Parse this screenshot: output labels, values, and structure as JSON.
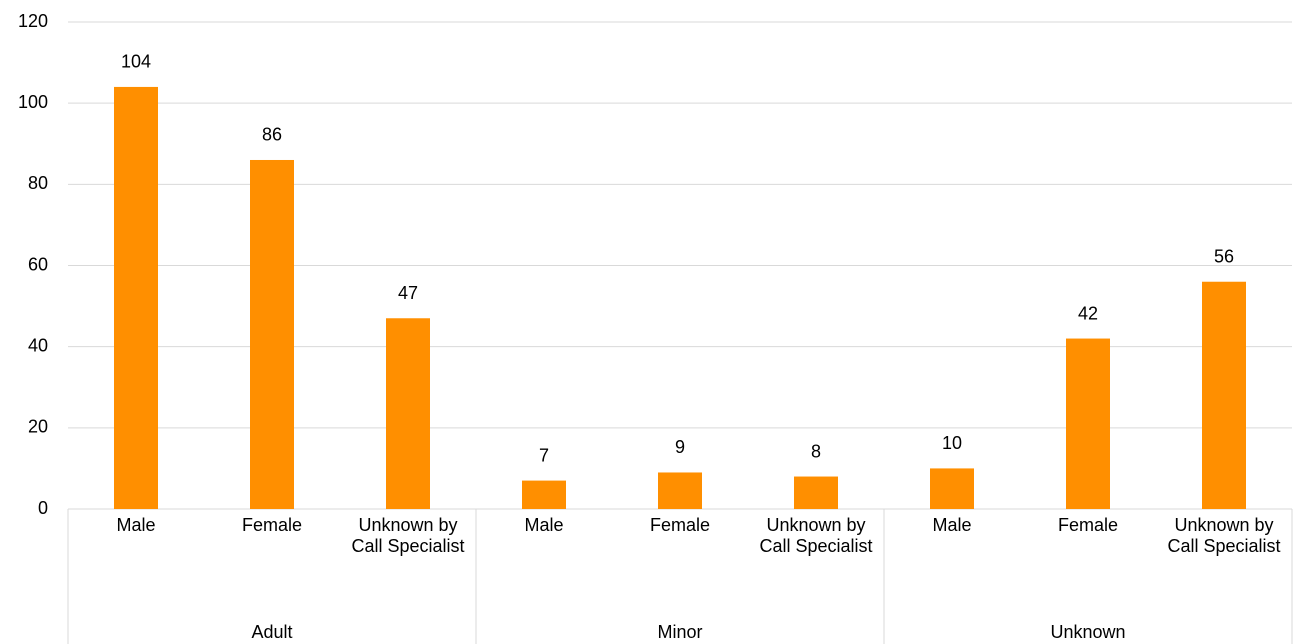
{
  "chart_data": {
    "type": "bar",
    "categories": [
      "Male",
      "Female",
      "Unknown by Call Specialist",
      "Male",
      "Female",
      "Unknown by Call Specialist",
      "Male",
      "Female",
      "Unknown by Call Specialist"
    ],
    "groups": [
      "Adult",
      "Minor",
      "Unknown"
    ],
    "values": [
      104,
      86,
      47,
      7,
      9,
      8,
      10,
      42,
      56
    ],
    "color": "#ff8f00",
    "ylim": [
      0,
      120
    ],
    "yticks": [
      0,
      20,
      40,
      60,
      80,
      100,
      120
    ],
    "grid": true
  }
}
